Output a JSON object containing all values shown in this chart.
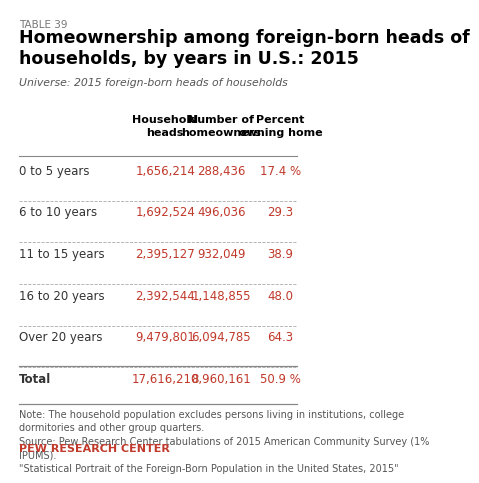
{
  "table_label": "TABLE 39",
  "title": "Homeownership among foreign-born heads of\nhouseholds, by years in U.S.: 2015",
  "universe": "Universe: 2015 foreign-born heads of households",
  "col_headers": [
    "Household\nheads",
    "Number of\nhomeowners",
    "Percent\nowning home"
  ],
  "row_labels": [
    "0 to 5 years",
    "6 to 10 years",
    "11 to 15 years",
    "16 to 20 years",
    "Over 20 years",
    "Total"
  ],
  "col1": [
    "1,656,214",
    "1,692,524",
    "2,395,127",
    "2,392,544",
    "9,479,801",
    "17,616,210"
  ],
  "col2": [
    "288,436",
    "496,036",
    "932,049",
    "1,148,855",
    "6,094,785",
    "8,960,161"
  ],
  "col3": [
    "17.4 %",
    "29.3",
    "38.9",
    "48.0",
    "64.3",
    "50.9 %"
  ],
  "note": "Note: The household population excludes persons living in institutions, college\ndormitories and other group quarters.\nSource: Pew Research Center tabulations of 2015 American Community Survey (1%\nIPUMS).\n\"Statistical Portrait of the Foreign-Born Population in the United States, 2015\"",
  "footer": "PEW RESEARCH CENTER",
  "bg_color": "#ffffff",
  "title_color": "#000000",
  "label_color": "#333333",
  "data_color": "#c0392b",
  "header_color": "#000000",
  "footer_color": "#c0392b",
  "note_color": "#555555"
}
